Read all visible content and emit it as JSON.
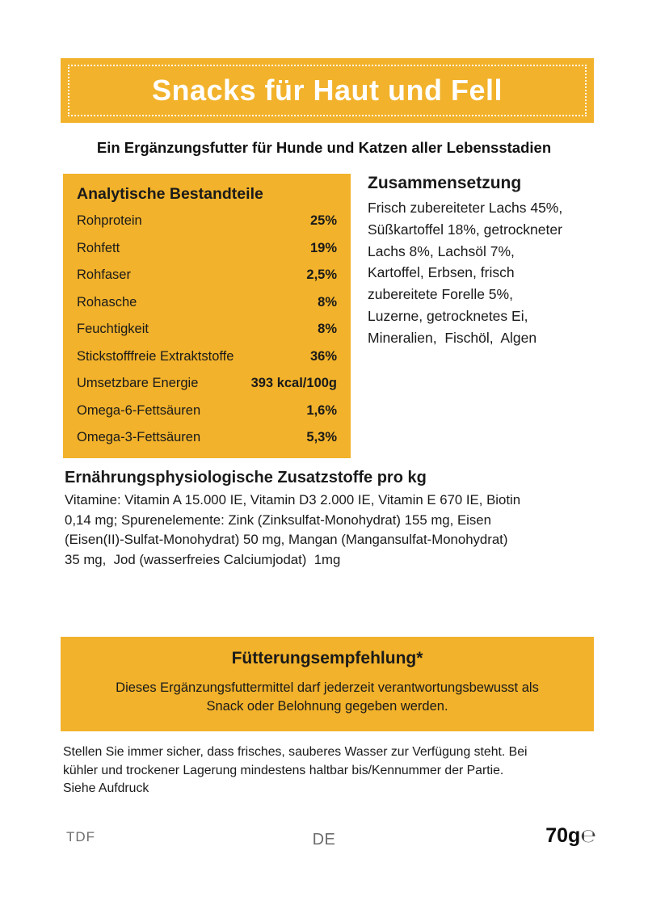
{
  "colors": {
    "accent": "#F2B22B",
    "header_text": "#FFFFFF",
    "body_text": "#1A1A1A",
    "muted_text": "#6E6E6E"
  },
  "header": {
    "title": "Snacks für Haut und Fell"
  },
  "subtitle": "Ein Ergänzungsfutter für Hunde und Katzen aller Lebensstadien",
  "analysis": {
    "title": "Analytische Bestandteile",
    "rows": [
      {
        "label": "Rohprotein",
        "value": "25%"
      },
      {
        "label": "Rohfett",
        "value": "19%"
      },
      {
        "label": "Rohfaser",
        "value": "2,5%"
      },
      {
        "label": "Rohasche",
        "value": "8%"
      },
      {
        "label": "Feuchtigkeit",
        "value": "8%"
      },
      {
        "label": "Stickstofffreie Extraktstoffe",
        "value": "36%"
      },
      {
        "label": "Umsetzbare Energie",
        "value": "393 kcal/100g"
      },
      {
        "label": "Omega-6-Fettsäuren",
        "value": "1,6%"
      },
      {
        "label": "Omega-3-Fettsäuren",
        "value": "5,3%"
      }
    ]
  },
  "composition": {
    "title": "Zusammensetzung",
    "lines": [
      "Frisch zubereiteter Lachs 45%,",
      "Süßkartoffel 18%, getrockneter",
      "Lachs 8%, Lachsöl 7%,",
      "Kartoffel, Erbsen, frisch",
      "zubereitete Forelle 5%,",
      "Luzerne, getrocknetes Ei,",
      "Mineralien,  Fischöl,  Algen"
    ]
  },
  "additives": {
    "title": "Ernährungsphysiologische Zusatzstoffe pro kg",
    "lines": [
      "Vitamine: Vitamin A 15.000 IE, Vitamin D3 2.000 IE, Vitamin E 670 IE, Biotin",
      "0,14 mg; Spurenelemente: Zink (Zinksulfat-Monohydrat) 155 mg, Eisen",
      "(Eisen(II)-Sulfat-Monohydrat) 50 mg, Mangan (Mangansulfat-Monohydrat)",
      "35 mg,  Jod (wasserfreies Calciumjodat)  1mg"
    ]
  },
  "feeding": {
    "title": "Fütterungsempfehlung*",
    "text": "Dieses Ergänzungsfuttermittel darf jederzeit verantwortungsbewusst als Snack oder Belohnung gegeben werden."
  },
  "storage": {
    "lines": [
      "Stellen Sie immer sicher, dass frisches, sauberes Wasser zur Verfügung steht. Bei",
      "kühler und trockener Lagerung mindestens haltbar bis/Kennummer der Partie.",
      "Siehe Aufdruck"
    ]
  },
  "footer": {
    "left_code": "TDF",
    "language_code": "DE",
    "net_weight": "70g",
    "estimated_sign": "℮"
  }
}
